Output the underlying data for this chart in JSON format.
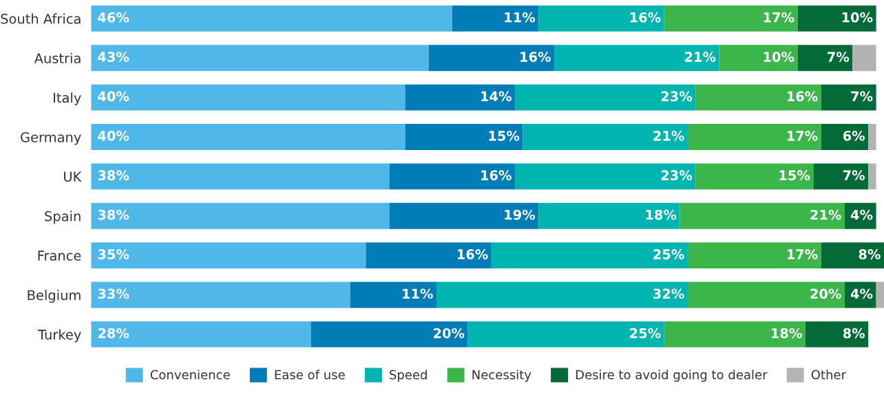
{
  "chart_data": {
    "type": "bar",
    "orientation": "horizontal",
    "stacked": true,
    "legend": "bottom",
    "categories": [
      "South Africa",
      "Austria",
      "Italy",
      "Germany",
      "UK",
      "Spain",
      "France",
      "Belgium",
      "Turkey"
    ],
    "series": [
      {
        "name": "Convenience",
        "color": "#4fb8e8",
        "values": [
          46,
          43,
          40,
          40,
          38,
          38,
          35,
          33,
          28
        ],
        "value_labels": [
          "46%",
          "43%",
          "40%",
          "40%",
          "38%",
          "38%",
          "35%",
          "33%",
          "28%"
        ]
      },
      {
        "name": "Ease of use",
        "color": "#007cb7",
        "values": [
          11,
          16,
          14,
          15,
          16,
          19,
          16,
          11,
          20
        ],
        "value_labels": [
          "11%",
          "16%",
          "14%",
          "15%",
          "16%",
          "19%",
          "16%",
          "11%",
          "20%"
        ]
      },
      {
        "name": "Speed",
        "color": "#00b4b0",
        "values": [
          16,
          21,
          23,
          21,
          23,
          18,
          25,
          32,
          25
        ],
        "value_labels": [
          "16%",
          "21%",
          "23%",
          "21%",
          "23%",
          "18%",
          "25%",
          "32%",
          "25%"
        ]
      },
      {
        "name": "Necessity",
        "color": "#3cb54a",
        "values": [
          17,
          10,
          16,
          17,
          15,
          21,
          17,
          20,
          18
        ],
        "value_labels": [
          "17%",
          "10%",
          "16%",
          "17%",
          "15%",
          "21%",
          "17%",
          "20%",
          "18%"
        ]
      },
      {
        "name": "Desire to avoid going to dealer",
        "color": "#046a38",
        "values": [
          10,
          7,
          7,
          6,
          7,
          4,
          8,
          4,
          8
        ],
        "value_labels": [
          "10%",
          "7%",
          "7%",
          "6%",
          "7%",
          "4%",
          "8%",
          "4%",
          "8%"
        ]
      },
      {
        "name": "Other",
        "color": "#b3b3b3",
        "values": [
          null,
          3,
          null,
          1,
          1,
          null,
          null,
          1,
          null
        ],
        "value_labels": [
          null,
          null,
          null,
          null,
          null,
          null,
          null,
          null,
          null
        ]
      }
    ]
  }
}
